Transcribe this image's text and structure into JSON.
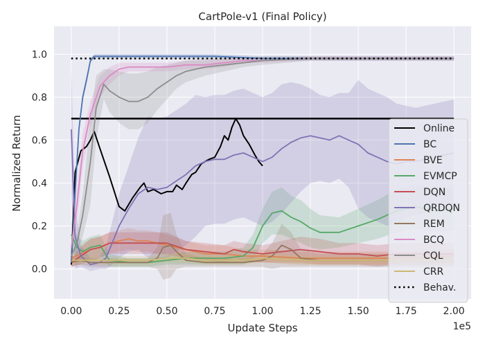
{
  "chart_data": {
    "type": "line",
    "title": "CartPole-v1 (Final Policy)",
    "xlabel": "Update Steps",
    "ylabel": "Normalized Return",
    "x_offset_label": "1e5",
    "xlim": [
      -0.09,
      2.09
    ],
    "ylim": [
      -0.14,
      1.13
    ],
    "x_ticks": [
      0.0,
      0.25,
      0.5,
      0.75,
      1.0,
      1.25,
      1.5,
      1.75,
      2.0
    ],
    "x_tick_labels": [
      "0.00",
      "0.25",
      "0.50",
      "0.75",
      "1.00",
      "1.25",
      "1.50",
      "1.75",
      "2.00"
    ],
    "y_ticks": [
      0.0,
      0.2,
      0.4,
      0.6,
      0.8,
      1.0
    ],
    "y_tick_labels": [
      "0.0",
      "0.2",
      "0.4",
      "0.6",
      "0.8",
      "1.0"
    ],
    "grid": true,
    "legend_position": "right",
    "background": "#eaeaf2",
    "series": [
      {
        "name": "Online",
        "color": "#000000",
        "style": "solid",
        "x": [
          0,
          0.02,
          0.05,
          0.08,
          0.1,
          0.12,
          0.15,
          0.2,
          0.25,
          0.28,
          0.32,
          0.36,
          0.38,
          0.4,
          0.43,
          0.47,
          0.5,
          0.53,
          0.55,
          0.58,
          0.6,
          0.63,
          0.65,
          0.68,
          0.7,
          0.72,
          0.75,
          0.78,
          0.8,
          0.82,
          0.84,
          0.86,
          0.88,
          0.9,
          0.93,
          0.96,
          0.98,
          1.0
        ],
        "y": [
          0.02,
          0.45,
          0.55,
          0.57,
          0.6,
          0.64,
          0.56,
          0.43,
          0.29,
          0.27,
          0.33,
          0.38,
          0.4,
          0.36,
          0.37,
          0.35,
          0.36,
          0.36,
          0.39,
          0.37,
          0.4,
          0.44,
          0.45,
          0.49,
          0.5,
          0.51,
          0.52,
          0.57,
          0.62,
          0.6,
          0.66,
          0.7,
          0.67,
          0.62,
          0.58,
          0.53,
          0.5,
          0.48
        ],
        "constant": 0.7
      },
      {
        "name": "BC",
        "color": "#4c72b0",
        "style": "solid",
        "x": [
          0,
          0.02,
          0.04,
          0.06,
          0.08,
          0.1,
          0.12,
          0.15,
          0.2,
          0.3,
          0.5,
          0.75,
          1.0,
          1.25,
          1.5,
          1.75,
          2.0
        ],
        "y": [
          0.03,
          0.35,
          0.65,
          0.8,
          0.88,
          0.97,
          0.99,
          0.99,
          0.99,
          0.99,
          0.99,
          0.99,
          0.98,
          0.98,
          0.98,
          0.98,
          0.98
        ],
        "band": [
          0.03,
          0.02,
          0.02,
          0.02,
          0.02,
          0.01,
          0.01,
          0.01,
          0.01,
          0.01,
          0.01,
          0.01,
          0.01,
          0.01,
          0.01,
          0.01,
          0.01
        ]
      },
      {
        "name": "BVE",
        "color": "#dd8452",
        "style": "solid",
        "x": [
          0,
          0.05,
          0.1,
          0.15,
          0.2,
          0.25,
          0.3,
          0.35,
          0.4,
          0.45,
          0.5,
          0.6,
          0.7,
          0.8,
          0.9,
          1.0,
          1.2,
          1.4,
          1.6,
          1.8,
          2.0
        ],
        "y": [
          0.05,
          0.07,
          0.09,
          0.1,
          0.12,
          0.13,
          0.14,
          0.13,
          0.13,
          0.12,
          0.11,
          0.09,
          0.07,
          0.07,
          0.06,
          0.06,
          0.05,
          0.05,
          0.05,
          0.05,
          0.06
        ],
        "band": [
          0.04,
          0.04,
          0.05,
          0.05,
          0.05,
          0.05,
          0.05,
          0.05,
          0.05,
          0.05,
          0.05,
          0.04,
          0.04,
          0.04,
          0.03,
          0.03,
          0.03,
          0.03,
          0.03,
          0.03,
          0.03
        ]
      },
      {
        "name": "EVMCP",
        "color": "#55a868",
        "style": "solid",
        "x": [
          0,
          0.03,
          0.06,
          0.1,
          0.15,
          0.2,
          0.3,
          0.4,
          0.5,
          0.6,
          0.7,
          0.8,
          0.9,
          0.95,
          1.0,
          1.05,
          1.1,
          1.15,
          1.2,
          1.25,
          1.3,
          1.4,
          1.5,
          1.6,
          1.7,
          1.8,
          1.9,
          2.0
        ],
        "y": [
          0.16,
          0.1,
          0.08,
          0.1,
          0.11,
          0.04,
          0.03,
          0.03,
          0.04,
          0.05,
          0.05,
          0.05,
          0.06,
          0.1,
          0.2,
          0.26,
          0.27,
          0.24,
          0.22,
          0.19,
          0.17,
          0.17,
          0.2,
          0.23,
          0.27,
          0.29,
          0.27,
          0.28
        ],
        "band": [
          0.06,
          0.05,
          0.05,
          0.05,
          0.05,
          0.03,
          0.02,
          0.02,
          0.02,
          0.03,
          0.03,
          0.03,
          0.04,
          0.06,
          0.08,
          0.1,
          0.11,
          0.1,
          0.1,
          0.09,
          0.08,
          0.07,
          0.08,
          0.09,
          0.1,
          0.1,
          0.1,
          0.1
        ]
      },
      {
        "name": "DQN",
        "color": "#c44e52",
        "style": "solid",
        "x": [
          0,
          0.05,
          0.1,
          0.15,
          0.2,
          0.3,
          0.4,
          0.5,
          0.6,
          0.7,
          0.8,
          0.85,
          0.9,
          1.0,
          1.1,
          1.2,
          1.3,
          1.4,
          1.5,
          1.6,
          1.7,
          1.8,
          1.9,
          2.0
        ],
        "y": [
          0.03,
          0.06,
          0.09,
          0.1,
          0.12,
          0.12,
          0.12,
          0.12,
          0.09,
          0.08,
          0.07,
          0.09,
          0.08,
          0.07,
          0.08,
          0.09,
          0.08,
          0.07,
          0.07,
          0.06,
          0.07,
          0.07,
          0.07,
          0.07
        ],
        "band": [
          0.02,
          0.04,
          0.05,
          0.05,
          0.05,
          0.05,
          0.05,
          0.05,
          0.04,
          0.04,
          0.04,
          0.04,
          0.04,
          0.04,
          0.05,
          0.06,
          0.06,
          0.05,
          0.05,
          0.05,
          0.05,
          0.05,
          0.05,
          0.05
        ]
      },
      {
        "name": "QRDQN",
        "color": "#8172b3",
        "style": "solid",
        "x": [
          0,
          0.02,
          0.05,
          0.1,
          0.15,
          0.18,
          0.2,
          0.25,
          0.3,
          0.35,
          0.4,
          0.45,
          0.5,
          0.55,
          0.6,
          0.65,
          0.7,
          0.75,
          0.8,
          0.85,
          0.9,
          0.95,
          1.0,
          1.05,
          1.1,
          1.15,
          1.2,
          1.25,
          1.3,
          1.35,
          1.4,
          1.45,
          1.5,
          1.55,
          1.6,
          1.65,
          1.7,
          1.75,
          1.8,
          1.85,
          1.9,
          1.95,
          2.0
        ],
        "y": [
          0.65,
          0.15,
          0.06,
          0.02,
          0.03,
          0.05,
          0.09,
          0.2,
          0.28,
          0.35,
          0.38,
          0.37,
          0.38,
          0.41,
          0.44,
          0.48,
          0.5,
          0.51,
          0.51,
          0.53,
          0.54,
          0.52,
          0.5,
          0.52,
          0.56,
          0.59,
          0.61,
          0.62,
          0.61,
          0.6,
          0.62,
          0.6,
          0.58,
          0.54,
          0.52,
          0.5,
          0.49,
          0.5,
          0.5,
          0.51,
          0.52,
          0.53,
          0.54
        ],
        "band": [
          0.3,
          0.15,
          0.05,
          0.03,
          0.03,
          0.05,
          0.08,
          0.15,
          0.2,
          0.26,
          0.33,
          0.33,
          0.33,
          0.33,
          0.33,
          0.33,
          0.3,
          0.3,
          0.3,
          0.3,
          0.3,
          0.3,
          0.3,
          0.3,
          0.3,
          0.28,
          0.25,
          0.22,
          0.2,
          0.2,
          0.2,
          0.22,
          0.3,
          0.3,
          0.3,
          0.3,
          0.28,
          0.26,
          0.25,
          0.25,
          0.25,
          0.25,
          0.25
        ]
      },
      {
        "name": "REM",
        "color": "#937860",
        "style": "solid",
        "x": [
          0,
          0.05,
          0.1,
          0.15,
          0.2,
          0.3,
          0.4,
          0.45,
          0.48,
          0.52,
          0.55,
          0.6,
          0.7,
          0.8,
          0.9,
          1.0,
          1.05,
          1.1,
          1.15,
          1.2,
          1.3,
          1.4,
          1.5,
          1.6,
          1.7,
          1.8,
          1.9,
          2.0
        ],
        "y": [
          0.03,
          0.04,
          0.03,
          0.03,
          0.03,
          0.03,
          0.03,
          0.05,
          0.1,
          0.11,
          0.08,
          0.04,
          0.03,
          0.03,
          0.03,
          0.04,
          0.06,
          0.11,
          0.09,
          0.05,
          0.04,
          0.04,
          0.04,
          0.04,
          0.04,
          0.04,
          0.04,
          0.04
        ],
        "band": [
          0.02,
          0.02,
          0.02,
          0.02,
          0.02,
          0.02,
          0.02,
          0.05,
          0.15,
          0.15,
          0.08,
          0.03,
          0.02,
          0.02,
          0.02,
          0.03,
          0.06,
          0.1,
          0.08,
          0.04,
          0.03,
          0.03,
          0.03,
          0.03,
          0.03,
          0.03,
          0.03,
          0.03
        ]
      },
      {
        "name": "BCQ",
        "color": "#da8bc3",
        "style": "solid",
        "x": [
          0,
          0.03,
          0.06,
          0.1,
          0.15,
          0.2,
          0.25,
          0.3,
          0.4,
          0.5,
          0.6,
          0.7,
          0.8,
          0.9,
          1.0,
          1.25,
          1.5,
          1.75,
          2.0
        ],
        "y": [
          0.1,
          0.3,
          0.55,
          0.72,
          0.85,
          0.9,
          0.93,
          0.94,
          0.94,
          0.94,
          0.95,
          0.95,
          0.96,
          0.97,
          0.97,
          0.98,
          0.98,
          0.98,
          0.98
        ],
        "band": [
          0.05,
          0.08,
          0.08,
          0.06,
          0.05,
          0.04,
          0.03,
          0.02,
          0.02,
          0.02,
          0.02,
          0.02,
          0.02,
          0.01,
          0.01,
          0.01,
          0.01,
          0.01,
          0.01
        ]
      },
      {
        "name": "CQL",
        "color": "#8c8c8c",
        "style": "solid",
        "x": [
          0,
          0.03,
          0.06,
          0.1,
          0.13,
          0.17,
          0.2,
          0.25,
          0.3,
          0.35,
          0.4,
          0.45,
          0.5,
          0.55,
          0.6,
          0.7,
          0.8,
          0.9,
          1.0,
          1.25,
          1.5,
          1.75,
          2.0
        ],
        "y": [
          0.06,
          0.12,
          0.25,
          0.5,
          0.75,
          0.86,
          0.83,
          0.8,
          0.78,
          0.78,
          0.8,
          0.84,
          0.87,
          0.9,
          0.92,
          0.94,
          0.95,
          0.96,
          0.97,
          0.98,
          0.98,
          0.98,
          0.98
        ],
        "band": [
          0.03,
          0.05,
          0.1,
          0.2,
          0.15,
          0.07,
          0.1,
          0.12,
          0.13,
          0.13,
          0.12,
          0.1,
          0.08,
          0.06,
          0.05,
          0.04,
          0.03,
          0.02,
          0.02,
          0.01,
          0.01,
          0.01,
          0.01
        ]
      },
      {
        "name": "CRR",
        "color": "#ccb974",
        "style": "solid",
        "x": [
          0,
          0.05,
          0.1,
          0.15,
          0.2,
          0.3,
          0.4,
          0.5,
          0.6,
          0.7,
          0.8,
          0.9,
          1.0,
          1.25,
          1.5,
          1.75,
          2.0
        ],
        "y": [
          0.04,
          0.04,
          0.04,
          0.04,
          0.04,
          0.04,
          0.04,
          0.05,
          0.05,
          0.04,
          0.04,
          0.04,
          0.05,
          0.04,
          0.04,
          0.04,
          0.04
        ],
        "band": [
          0.02,
          0.02,
          0.02,
          0.02,
          0.02,
          0.02,
          0.02,
          0.02,
          0.02,
          0.02,
          0.02,
          0.02,
          0.02,
          0.02,
          0.02,
          0.02,
          0.02
        ]
      },
      {
        "name": "Behav.",
        "color": "#000000",
        "style": "dotted",
        "constant": 0.98
      }
    ]
  }
}
